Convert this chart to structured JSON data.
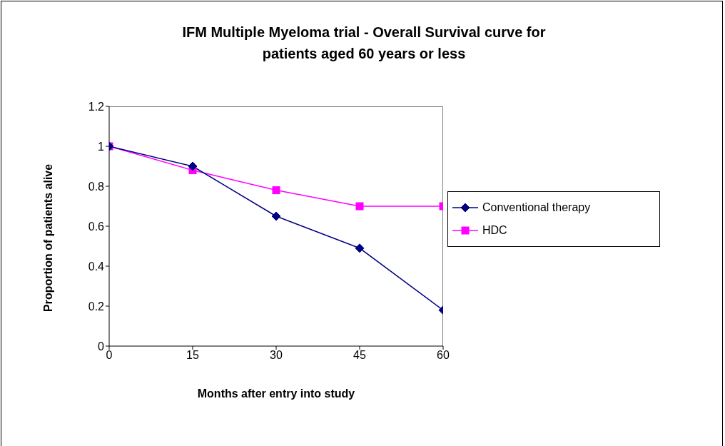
{
  "chart_data": {
    "type": "line",
    "title": "IFM Multiple Myeloma trial - Overall Survival curve for patients aged 60 years or less",
    "xlabel": "Months after entry into study",
    "ylabel": "Proportion of patients alive",
    "x": [
      0,
      15,
      30,
      45,
      60
    ],
    "series": [
      {
        "name": "Conventional therapy",
        "color": "#000080",
        "marker": "diamond",
        "values": [
          1.0,
          0.9,
          0.65,
          0.49,
          0.18
        ]
      },
      {
        "name": "HDC",
        "color": "#ff00ff",
        "marker": "square",
        "values": [
          1.0,
          0.88,
          0.78,
          0.7,
          0.7
        ]
      }
    ],
    "xlim": [
      0,
      60
    ],
    "xticks": [
      0,
      15,
      30,
      45,
      60
    ],
    "ylim": [
      0,
      1.2
    ],
    "yticks": [
      0,
      0.2,
      0.4,
      0.6,
      0.8,
      1,
      1.2
    ],
    "grid": false,
    "legend": "right",
    "line_style": "solid"
  }
}
